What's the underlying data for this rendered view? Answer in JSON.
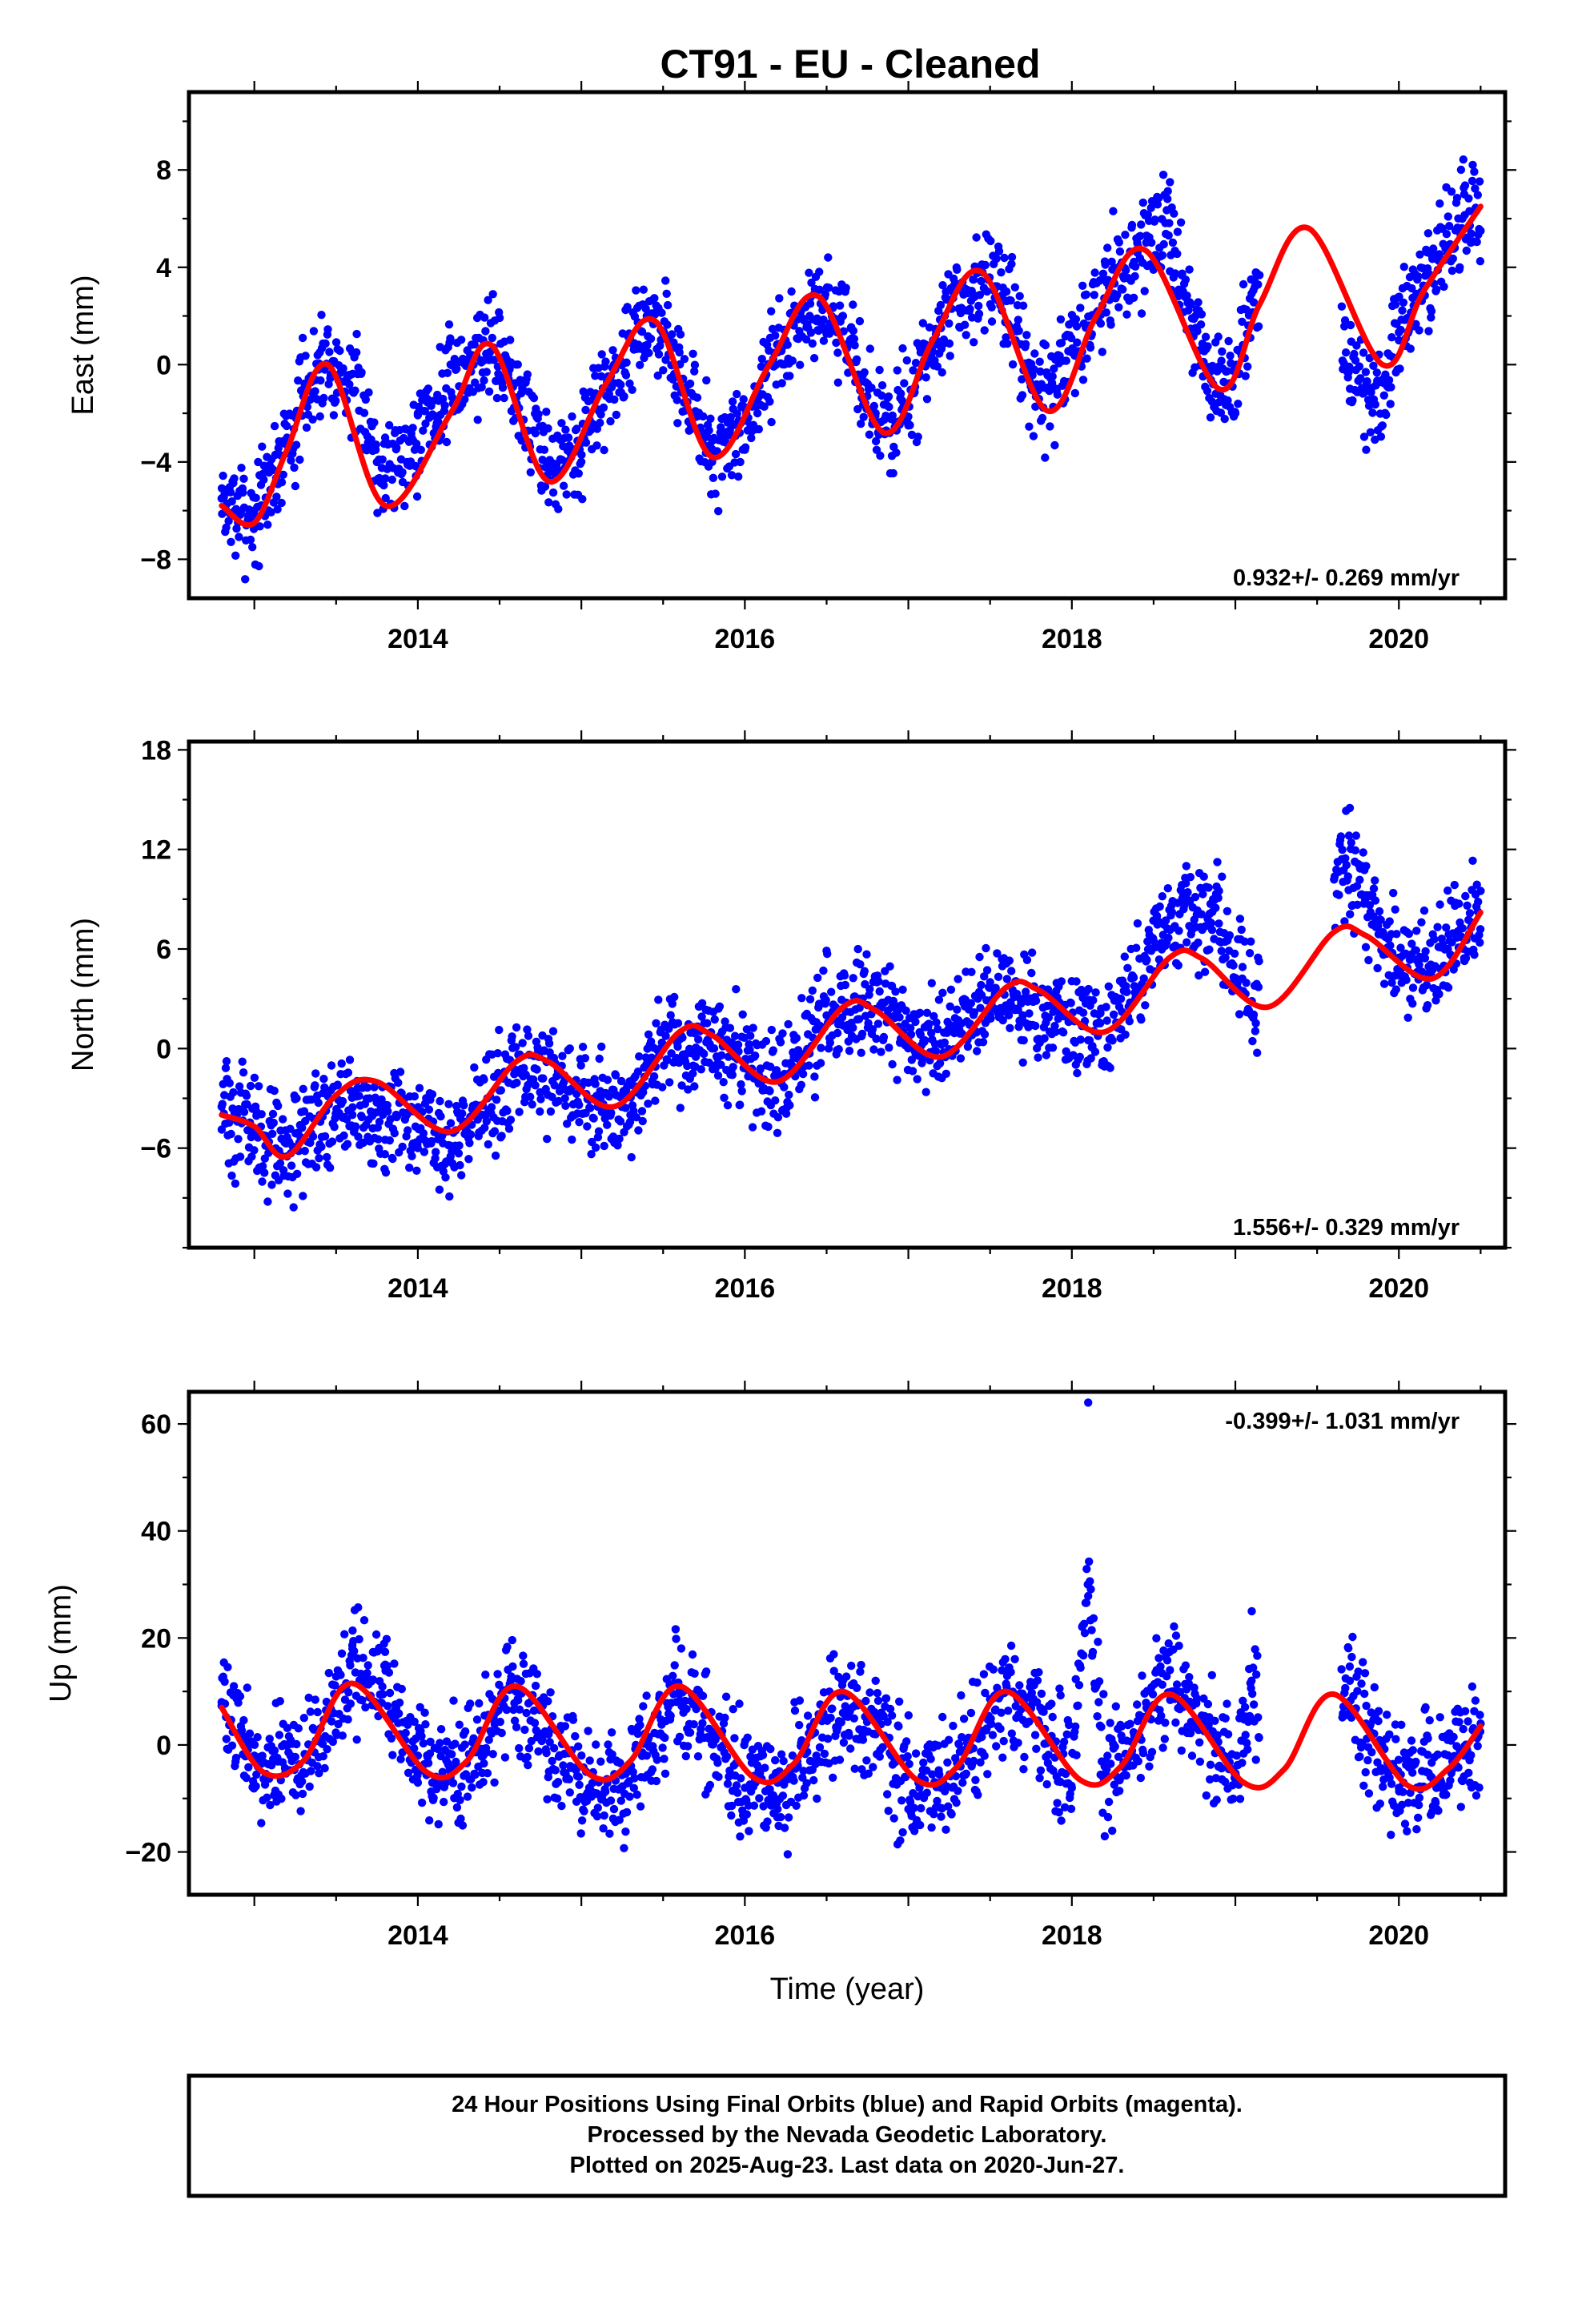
{
  "title": "CT91  - EU - Cleaned",
  "colors": {
    "final_orbits": "#0000ff",
    "rapid_orbits": "#ff00ff",
    "model_fit": "#ff0000",
    "frame": "#000000"
  },
  "footer": {
    "line1": "24 Hour Positions Using Final Orbits (blue) and Rapid Orbits (magenta).",
    "line2": "Processed by the Nevada Geodetic Laboratory.",
    "line3": "Plotted on 2025-Aug-23. Last data on 2020-Jun-27."
  },
  "chart_data": [
    {
      "type": "scatter",
      "panel": "east",
      "title": "",
      "xlabel": "",
      "ylabel": "East (mm)",
      "xlim": [
        2012.6,
        2020.65
      ],
      "ylim": [
        -9.6,
        11.2
      ],
      "xticks": [
        2014,
        2016,
        2018,
        2020
      ],
      "xtick_labels": [
        "2014",
        "2016",
        "2018",
        "2020"
      ],
      "yticks": [
        -8,
        -4,
        0,
        4,
        8
      ],
      "ytick_labels": [
        "−8",
        "−4",
        "0",
        "4",
        "8"
      ],
      "rate_label": "0.932+/- 0.269 mm/yr",
      "rate_position": "bottom-right",
      "series": [
        {
          "role": "daily positions (final orbits)",
          "style": "points",
          "color": "#0000ff",
          "x": [
            2012.8,
            2013.0,
            2013.2,
            2013.4,
            2013.6,
            2013.8,
            2014.0,
            2014.2,
            2014.4,
            2014.6,
            2014.8,
            2015.0,
            2015.2,
            2015.4,
            2015.6,
            2015.8,
            2016.0,
            2016.2,
            2016.4,
            2016.6,
            2016.8,
            2017.0,
            2017.2,
            2017.4,
            2017.6,
            2017.8,
            2018.0,
            2018.2,
            2018.4,
            2018.6,
            2018.8,
            2019.0,
            2019.1,
            2019.7,
            2019.8,
            2019.9,
            2020.0,
            2020.2,
            2020.4,
            2020.5
          ],
          "y": [
            -5.5,
            -6.0,
            -3.0,
            0.5,
            0.5,
            -3.0,
            -2.0,
            0.0,
            1.0,
            0.0,
            -4.0,
            -4.0,
            0.0,
            2.0,
            0.5,
            -4.0,
            -3.5,
            0.5,
            2.5,
            2.0,
            -2.0,
            -2.5,
            1.5,
            3.5,
            3.0,
            -1.0,
            0.5,
            3.5,
            5.0,
            7.5,
            0.0,
            -2.0,
            3.5,
            -1.5,
            -3.5,
            -2.5,
            1.0,
            4.5,
            7.0,
            5.5
          ]
        },
        {
          "role": "model fit",
          "style": "line",
          "color": "#ff0000",
          "x": [
            2012.8,
            2013.0,
            2013.2,
            2013.45,
            2013.8,
            2014.2,
            2014.45,
            2014.8,
            2015.15,
            2015.45,
            2015.8,
            2016.15,
            2016.45,
            2016.85,
            2017.15,
            2017.45,
            2017.85,
            2018.15,
            2018.45,
            2018.9,
            2019.15,
            2019.45,
            2019.9,
            2020.15,
            2020.5
          ],
          "y": [
            -5.8,
            -6.5,
            -3.5,
            0.0,
            -5.8,
            -2.0,
            0.8,
            -4.8,
            -0.8,
            1.8,
            -3.8,
            0.0,
            2.8,
            -2.8,
            1.0,
            3.8,
            -1.9,
            2.0,
            4.7,
            -1.0,
            2.5,
            5.6,
            0.0,
            3.0,
            6.5
          ]
        }
      ]
    },
    {
      "type": "scatter",
      "panel": "north",
      "title": "",
      "xlabel": "",
      "ylabel": "North (mm)",
      "xlim": [
        2012.6,
        2020.65
      ],
      "ylim": [
        -12,
        18.5
      ],
      "xticks": [
        2014,
        2016,
        2018,
        2020
      ],
      "xtick_labels": [
        "2014",
        "2016",
        "2018",
        "2020"
      ],
      "yticks": [
        -6,
        0,
        6,
        12,
        18
      ],
      "ytick_labels": [
        "−6",
        "0",
        "6",
        "12",
        "18"
      ],
      "rate_label": "1.556+/- 0.329 mm/yr",
      "rate_position": "bottom-right",
      "series": [
        {
          "role": "daily positions (final orbits)",
          "style": "points",
          "color": "#0000ff",
          "x": [
            2012.8,
            2013.0,
            2013.2,
            2013.4,
            2013.6,
            2013.8,
            2014.0,
            2014.2,
            2014.4,
            2014.7,
            2014.9,
            2015.1,
            2015.3,
            2015.5,
            2015.7,
            2015.9,
            2016.1,
            2016.3,
            2016.5,
            2016.7,
            2016.9,
            2017.1,
            2017.3,
            2017.5,
            2017.7,
            2017.9,
            2018.1,
            2018.3,
            2018.5,
            2018.7,
            2018.9,
            2019.1,
            2019.7,
            2019.8,
            2019.9,
            2020.1,
            2020.3,
            2020.5
          ],
          "y": [
            -3.5,
            -5.0,
            -6.5,
            -4.0,
            -4.0,
            -5.5,
            -6.0,
            -6.5,
            -4.0,
            -2.0,
            -3.0,
            -3.5,
            -4.0,
            0.0,
            -0.5,
            -0.5,
            -2.0,
            -0.5,
            2.0,
            3.0,
            2.5,
            0.5,
            1.5,
            4.0,
            2.0,
            1.0,
            0.5,
            3.0,
            6.5,
            11.0,
            9.5,
            2.0,
            14.5,
            11.0,
            7.0,
            4.5,
            6.0,
            9.5
          ]
        },
        {
          "role": "model fit",
          "style": "line",
          "color": "#ff0000",
          "x": [
            2012.8,
            2013.0,
            2013.2,
            2013.5,
            2013.75,
            2014.2,
            2014.6,
            2014.8,
            2015.2,
            2015.6,
            2015.8,
            2016.2,
            2016.6,
            2016.8,
            2017.2,
            2017.6,
            2017.8,
            2018.2,
            2018.6,
            2018.8,
            2019.2,
            2019.6,
            2019.8,
            2020.2,
            2020.5
          ],
          "y": [
            -4.0,
            -4.7,
            -6.5,
            -2.8,
            -2.0,
            -5.0,
            -0.8,
            -0.8,
            -3.5,
            1.0,
            0.8,
            -2.0,
            2.5,
            2.3,
            -0.5,
            3.7,
            3.5,
            1.0,
            5.5,
            5.4,
            2.5,
            7.0,
            6.8,
            4.2,
            8.2
          ]
        }
      ]
    },
    {
      "type": "scatter",
      "panel": "up",
      "title": "",
      "xlabel": "Time (year)",
      "ylabel": "Up (mm)",
      "xlim": [
        2012.6,
        2020.65
      ],
      "ylim": [
        -28,
        66
      ],
      "xticks": [
        2014,
        2016,
        2018,
        2020
      ],
      "xtick_labels": [
        "2014",
        "2016",
        "2018",
        "2020"
      ],
      "yticks": [
        -20,
        0,
        20,
        40,
        60
      ],
      "ytick_labels": [
        "−20",
        "0",
        "20",
        "40",
        "60"
      ],
      "rate_label": "-0.399+/- 1.031 mm/yr",
      "rate_position": "top-right",
      "series": [
        {
          "role": "daily positions (final orbits)",
          "style": "points",
          "color": "#0000ff",
          "x": [
            2012.8,
            2013.0,
            2013.2,
            2013.4,
            2013.6,
            2013.8,
            2014.0,
            2014.2,
            2014.4,
            2014.6,
            2014.8,
            2015.0,
            2015.2,
            2015.4,
            2015.6,
            2015.8,
            2016.0,
            2016.2,
            2016.4,
            2016.6,
            2016.8,
            2017.0,
            2017.2,
            2017.4,
            2017.6,
            2017.8,
            2018.0,
            2018.1,
            2018.2,
            2018.4,
            2018.6,
            2018.8,
            2019.0,
            2019.1,
            2019.7,
            2019.8,
            2020.0,
            2020.2,
            2020.4,
            2020.5
          ],
          "y": [
            8.0,
            -2.0,
            -5.0,
            3.0,
            18.0,
            15.0,
            -2.0,
            -6.0,
            -2.0,
            10.0,
            2.0,
            -10.0,
            -12.0,
            -2.0,
            10.0,
            2.0,
            -8.0,
            -12.0,
            -3.0,
            6.0,
            2.0,
            -12.0,
            -8.0,
            -3.0,
            10.0,
            4.0,
            -8.0,
            64.0,
            -4.0,
            2.0,
            14.0,
            5.0,
            -6.0,
            25.0,
            12.0,
            4.0,
            -8.0,
            -6.0,
            -2.0,
            4.0
          ]
        },
        {
          "role": "model fit",
          "style": "line",
          "color": "#ff0000",
          "x": [
            2012.8,
            2013.05,
            2013.3,
            2013.6,
            2014.05,
            2014.3,
            2014.6,
            2015.05,
            2015.3,
            2015.6,
            2016.05,
            2016.3,
            2016.6,
            2017.05,
            2017.3,
            2017.6,
            2018.05,
            2018.3,
            2018.6,
            2019.05,
            2019.3,
            2019.6,
            2020.05,
            2020.3,
            2020.5
          ],
          "y": [
            7.0,
            -5.0,
            -3.0,
            11.5,
            -5.0,
            -3.0,
            11.0,
            -5.5,
            -3.0,
            11.0,
            -6.0,
            -3.5,
            10.0,
            -6.5,
            -4.0,
            10.0,
            -6.5,
            -4.0,
            9.5,
            -7.0,
            -4.5,
            9.5,
            -7.5,
            -4.5,
            3.5
          ]
        }
      ]
    }
  ]
}
